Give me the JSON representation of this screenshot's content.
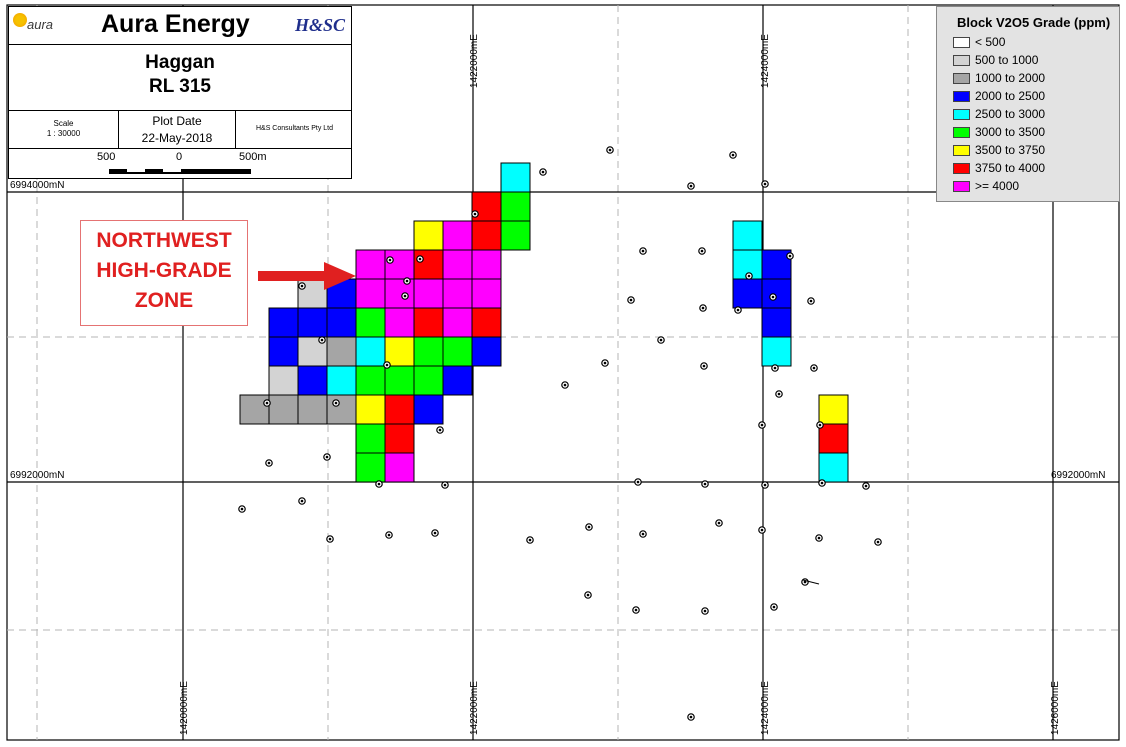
{
  "title_block": {
    "logo_text": "aura",
    "company": "Aura Energy",
    "consultant_logo": "H&SC",
    "place": "Haggan",
    "level": "RL 315",
    "scale_label": "Scale",
    "scale_value": "1 : 30000",
    "plot_date_label": "Plot Date",
    "plot_date_value": "22-May-2018",
    "consultant": "H&S Consultants Pty Ltd",
    "scalebar_left": "500",
    "scalebar_mid": "0",
    "scalebar_right": "500m"
  },
  "grid_labels": {
    "north_top_left": "6994000mN",
    "north_mid_left": "6992000mN",
    "north_mid_right": "6992000mN",
    "east_top_1": "1422000mE",
    "east_top_2": "1424000mE",
    "east_bottom_1": "1420000mE",
    "east_bottom_2": "1422000mE",
    "east_bottom_3": "1424000mE",
    "east_bottom_4": "1426000mE"
  },
  "legend": {
    "title": "Block V2O5 Grade (ppm)",
    "items": [
      {
        "label": "< 500",
        "color": "#ffffff"
      },
      {
        "label": "500 to 1000",
        "color": "#d3d3d3"
      },
      {
        "label": "1000 to 2000",
        "color": "#a5a5a5"
      },
      {
        "label": "2000 to 2500",
        "color": "#0000ff"
      },
      {
        "label": "2500 to 3000",
        "color": "#00ffff"
      },
      {
        "label": "3000 to 3500",
        "color": "#00ff00"
      },
      {
        "label": "3500 to 3750",
        "color": "#ffff00"
      },
      {
        "label": "3750 to 4000",
        "color": "#ff0000"
      },
      {
        "label": ">= 4000",
        "color": "#ff00ff"
      }
    ]
  },
  "callout": {
    "line1": "NORTHWEST",
    "line2": "HIGH-GRADE",
    "line3": "ZONE",
    "text_color": "#e02020"
  }
}
